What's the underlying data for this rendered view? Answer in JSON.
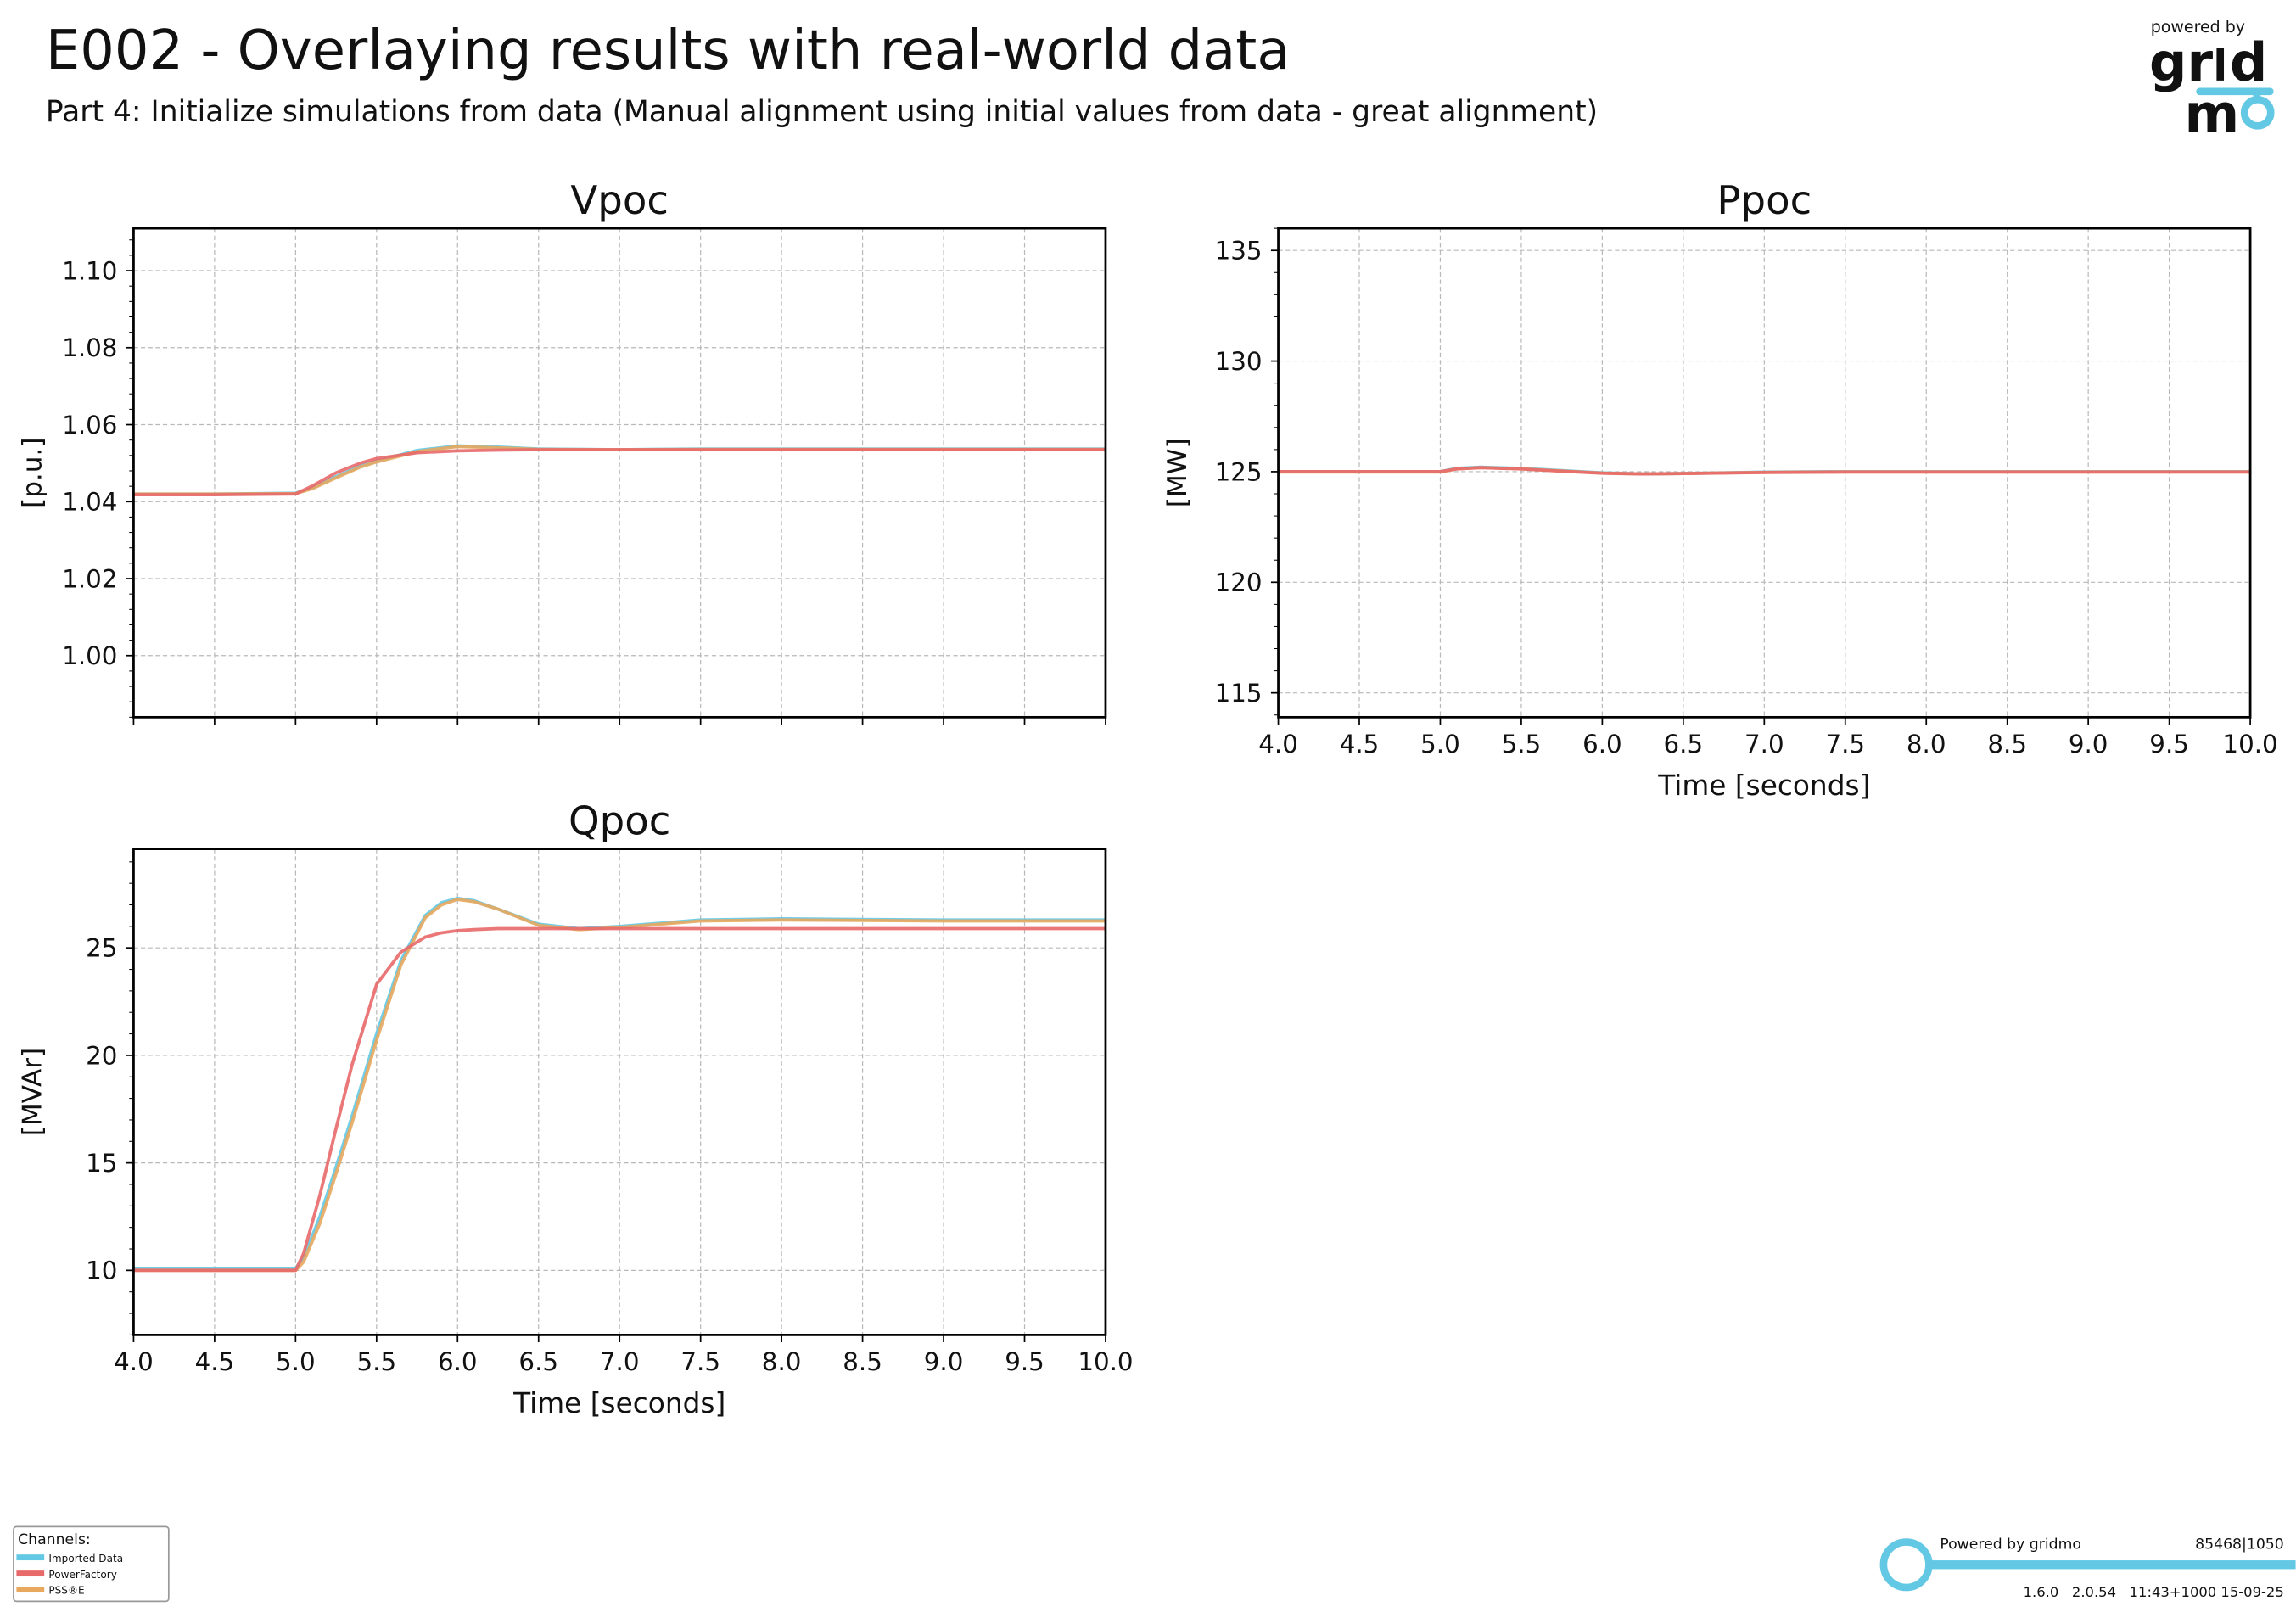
{
  "header": {
    "title": "E002 - Overlaying results with real-world data",
    "subtitle": "Part 4: Initialize simulations from data (Manual alignment using initial values from data - great alignment)"
  },
  "logo": {
    "top_text": "powered by",
    "brand": "gridmo"
  },
  "legend": {
    "title": "Channels:",
    "items": [
      {
        "label": "Imported Data",
        "color": "#63c8e4"
      },
      {
        "label": "PowerFactory",
        "color": "#e8696a"
      },
      {
        "label": "PSS®E",
        "color": "#e8a95e"
      }
    ]
  },
  "footer": {
    "powered": "Powered by gridmo",
    "id": "85468|1050",
    "versions": "1.6.0   2.0.54   11:43+1000 15-09-25",
    "accent": "#63c8e4"
  },
  "chart_data": [
    {
      "type": "line",
      "title": "Vpoc",
      "ylabel": "[p.u.]",
      "xlabel": "",
      "xlim": [
        4,
        10
      ],
      "ylim": [
        0.984,
        1.111
      ],
      "xticks": [
        4.0,
        4.5,
        5.0,
        5.5,
        6.0,
        6.5,
        7.0,
        7.5,
        8.0,
        8.5,
        9.0,
        9.5,
        10.0
      ],
      "show_xticklabels": false,
      "yticks": [
        1.0,
        1.02,
        1.04,
        1.06,
        1.08,
        1.1
      ],
      "ytick_decimals": 2,
      "grid": true,
      "x": [
        4.0,
        4.5,
        5.0,
        5.1,
        5.25,
        5.4,
        5.5,
        5.75,
        6.0,
        6.25,
        6.5,
        7.0,
        7.5,
        8.0,
        9.0,
        10.0
      ],
      "series": [
        {
          "name": "Imported Data",
          "values": [
            1.042,
            1.042,
            1.0422,
            1.0435,
            1.0465,
            1.0492,
            1.0505,
            1.0533,
            1.0545,
            1.0542,
            1.0537,
            1.0535,
            1.0537,
            1.0537,
            1.0537,
            1.0537
          ]
        },
        {
          "name": "PowerFactory",
          "values": [
            1.0418,
            1.0418,
            1.042,
            1.044,
            1.0475,
            1.05,
            1.0512,
            1.0527,
            1.0532,
            1.0534,
            1.0535,
            1.0535,
            1.0535,
            1.0535,
            1.0535,
            1.0535
          ]
        },
        {
          "name": "PSS®E",
          "values": [
            1.042,
            1.042,
            1.0421,
            1.0433,
            1.0462,
            1.049,
            1.0503,
            1.053,
            1.0543,
            1.054,
            1.0536,
            1.0535,
            1.0536,
            1.0536,
            1.0536,
            1.0536
          ]
        }
      ]
    },
    {
      "type": "line",
      "title": "Ppoc",
      "ylabel": "[MW]",
      "xlabel": "Time [seconds]",
      "xlim": [
        4,
        10
      ],
      "ylim": [
        113.9,
        136
      ],
      "xticks": [
        4.0,
        4.5,
        5.0,
        5.5,
        6.0,
        6.5,
        7.0,
        7.5,
        8.0,
        8.5,
        9.0,
        9.5,
        10.0
      ],
      "show_xticklabels": true,
      "yticks": [
        115,
        120,
        125,
        130,
        135
      ],
      "ytick_decimals": 0,
      "grid": true,
      "x": [
        4.0,
        4.5,
        5.0,
        5.1,
        5.25,
        5.5,
        5.75,
        6.0,
        6.25,
        6.5,
        7.0,
        7.5,
        8.0,
        9.0,
        10.0
      ],
      "series": [
        {
          "name": "Imported Data",
          "values": [
            125.0,
            125.0,
            125.0,
            125.15,
            125.2,
            125.15,
            125.05,
            124.95,
            124.9,
            124.92,
            124.98,
            125.0,
            125.0,
            125.0,
            125.0
          ]
        },
        {
          "name": "PowerFactory",
          "values": [
            125.0,
            125.0,
            125.0,
            125.12,
            125.18,
            125.12,
            125.02,
            124.93,
            124.9,
            124.92,
            124.96,
            124.98,
            124.98,
            124.98,
            124.98
          ]
        },
        {
          "name": "PSS®E",
          "values": [
            124.98,
            124.98,
            124.98,
            125.12,
            125.18,
            125.13,
            125.03,
            124.94,
            124.9,
            124.92,
            124.97,
            124.99,
            124.99,
            124.99,
            124.99
          ]
        }
      ]
    },
    {
      "type": "line",
      "title": "Qpoc",
      "ylabel": "[MVAr]",
      "xlabel": "Time [seconds]",
      "xlim": [
        4,
        10
      ],
      "ylim": [
        7.0,
        29.6
      ],
      "xticks": [
        4.0,
        4.5,
        5.0,
        5.5,
        6.0,
        6.5,
        7.0,
        7.5,
        8.0,
        8.5,
        9.0,
        9.5,
        10.0
      ],
      "show_xticklabels": true,
      "yticks": [
        10,
        15,
        20,
        25
      ],
      "ytick_decimals": 0,
      "grid": true,
      "x": [
        4.0,
        4.5,
        5.0,
        5.05,
        5.15,
        5.25,
        5.35,
        5.5,
        5.65,
        5.8,
        5.9,
        6.0,
        6.1,
        6.25,
        6.5,
        6.75,
        7.0,
        7.5,
        8.0,
        9.0,
        10.0
      ],
      "series": [
        {
          "name": "Imported Data",
          "values": [
            10.1,
            10.1,
            10.1,
            10.6,
            12.5,
            14.8,
            17.2,
            21.0,
            24.4,
            26.5,
            27.1,
            27.3,
            27.2,
            26.8,
            26.1,
            25.9,
            26.0,
            26.3,
            26.35,
            26.3,
            26.3
          ]
        },
        {
          "name": "PowerFactory",
          "values": [
            10.0,
            10.0,
            10.0,
            10.8,
            13.5,
            16.6,
            19.6,
            23.3,
            24.8,
            25.5,
            25.7,
            25.8,
            25.85,
            25.9,
            25.9,
            25.9,
            25.9,
            25.9,
            25.9,
            25.9,
            25.9
          ]
        },
        {
          "name": "PSS®E",
          "values": [
            10.0,
            10.0,
            10.0,
            10.4,
            12.2,
            14.5,
            16.9,
            20.7,
            24.2,
            26.4,
            27.0,
            27.25,
            27.15,
            26.8,
            26.05,
            25.85,
            25.95,
            26.25,
            26.3,
            26.25,
            26.25
          ]
        }
      ]
    }
  ]
}
